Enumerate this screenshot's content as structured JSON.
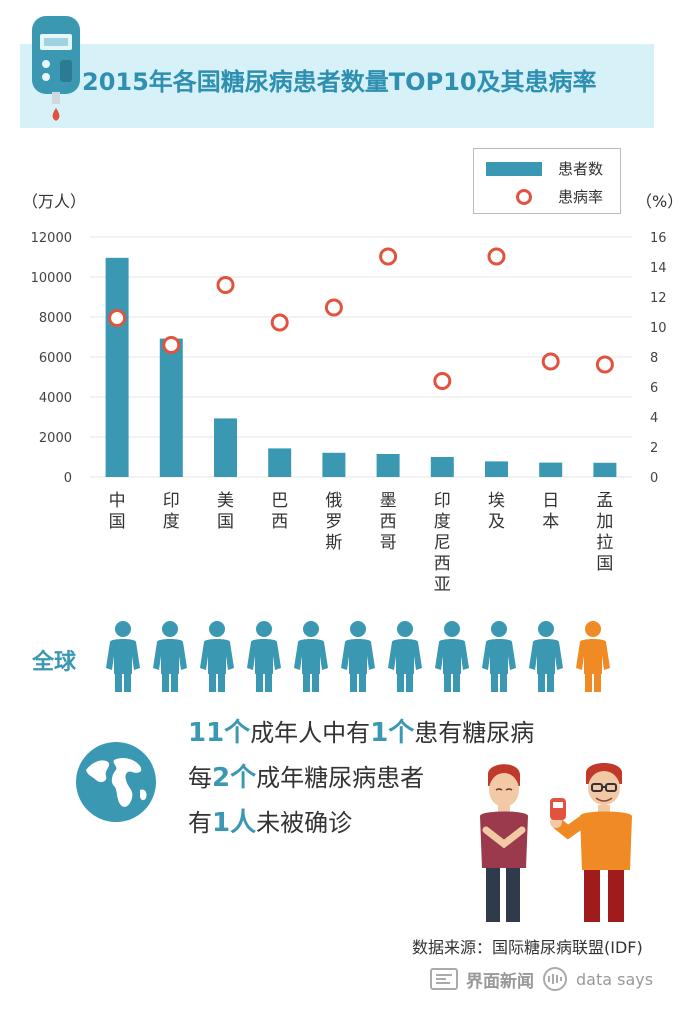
{
  "title": "2015年各国糖尿病患者数量TOP10及其患病率",
  "chart_data": {
    "type": "bar",
    "categories": [
      "中国",
      "印度",
      "美国",
      "巴西",
      "俄罗斯",
      "墨西哥",
      "印度尼西亚",
      "埃及",
      "日本",
      "孟加拉国"
    ],
    "series": [
      {
        "name": "患者数",
        "kind": "bar",
        "axis": "left",
        "values": [
          10960,
          6920,
          2930,
          1430,
          1210,
          1150,
          1000,
          780,
          720,
          710
        ]
      },
      {
        "name": "患病率",
        "kind": "scatter",
        "axis": "right",
        "values": [
          10.6,
          8.8,
          12.8,
          10.3,
          11.3,
          14.7,
          6.4,
          14.7,
          7.7,
          7.5
        ]
      }
    ],
    "y_left": {
      "unit": "（万人）",
      "min": 0,
      "max": 12000,
      "ticks": [
        0,
        2000,
        4000,
        6000,
        8000,
        10000,
        12000
      ]
    },
    "y_right": {
      "unit": "（%）",
      "min": 0,
      "max": 16,
      "ticks": [
        0,
        2,
        4,
        6,
        8,
        10,
        12,
        14,
        16
      ]
    },
    "grid": true,
    "legend": "top-right",
    "colors": {
      "bar": "#3a98b3",
      "dot": "#e2533f"
    }
  },
  "legend": {
    "bar_label": "患者数",
    "dot_label": "患病率"
  },
  "global": {
    "label": "全球",
    "people_count": 11,
    "highlighted_index": 10,
    "colors": {
      "normal": "#3a98b3",
      "highlight": "#f08a24"
    }
  },
  "facts": [
    {
      "parts": [
        {
          "t": "11个",
          "hl": true
        },
        {
          "t": "成年人中有",
          "hl": false
        },
        {
          "t": "1个",
          "hl": true
        },
        {
          "t": "患有糖尿病",
          "hl": false
        }
      ]
    },
    {
      "parts": [
        {
          "t": "每",
          "hl": false
        },
        {
          "t": "2个",
          "hl": true
        },
        {
          "t": "成年糖尿病患者",
          "hl": false
        }
      ]
    },
    {
      "parts": [
        {
          "t": "有",
          "hl": false
        },
        {
          "t": "1人",
          "hl": true
        },
        {
          "t": "未被确诊",
          "hl": false
        }
      ]
    }
  ],
  "source": "数据来源：国际糖尿病联盟(IDF)",
  "brand": {
    "name": "界面新闻",
    "sub": "data says"
  }
}
